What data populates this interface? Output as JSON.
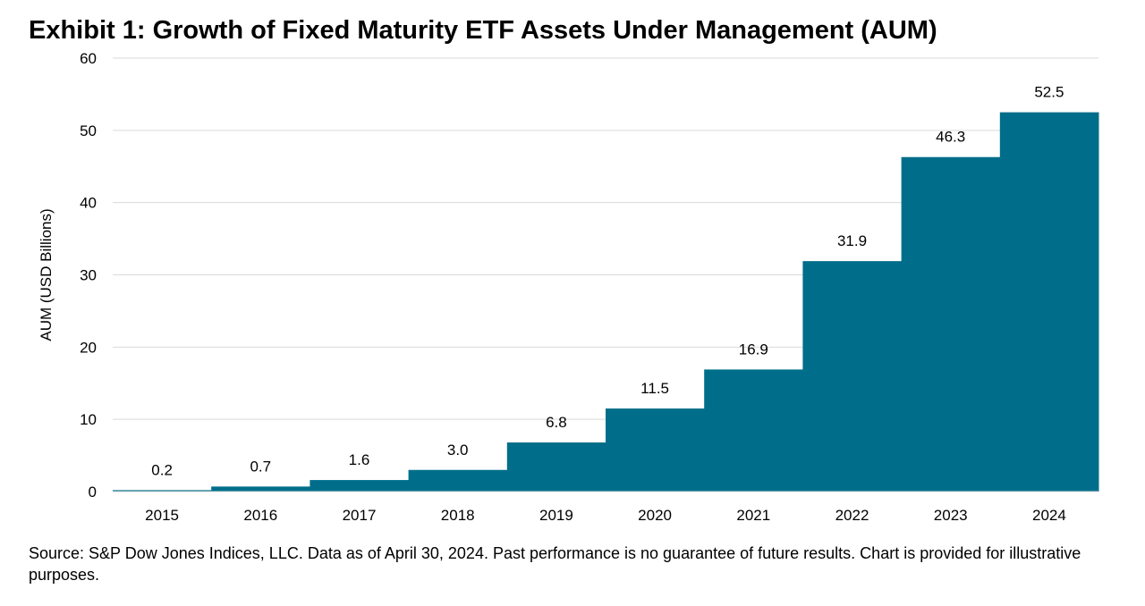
{
  "chart_data": {
    "type": "bar",
    "title": "Exhibit 1: Growth of Fixed Maturity ETF Assets Under Management (AUM)",
    "xlabel": "",
    "ylabel": "AUM (USD Billions)",
    "categories": [
      "2015",
      "2016",
      "2017",
      "2018",
      "2019",
      "2020",
      "2021",
      "2022",
      "2023",
      "2024"
    ],
    "values": [
      0.2,
      0.7,
      1.6,
      3.0,
      6.8,
      11.5,
      16.9,
      31.9,
      46.3,
      52.5
    ],
    "value_labels": [
      "0.2",
      "0.7",
      "1.6",
      "3.0",
      "6.8",
      "11.5",
      "16.9",
      "31.9",
      "46.3",
      "52.5"
    ],
    "ylim": [
      0,
      60
    ],
    "yticks": [
      "0",
      "10",
      "20",
      "30",
      "40",
      "50",
      "60"
    ],
    "grid": true,
    "bar_color": "#006E8A",
    "grid_color": "#D9D9D9"
  },
  "source": "Source: S&P Dow Jones Indices, LLC. Data as of April 30, 2024. Past performance is no guarantee of future results. Chart is provided for illustrative purposes."
}
